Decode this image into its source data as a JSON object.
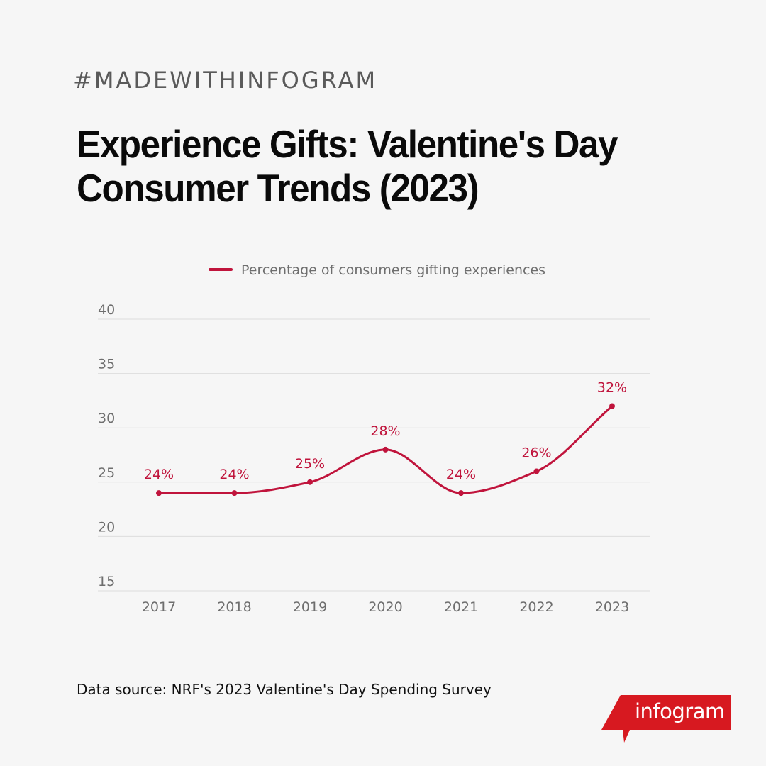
{
  "header": {
    "hashtag": "#MADEWITHINFOGRAM",
    "title_line1": "Experience Gifts: Valentine's Day",
    "title_line2": "Consumer Trends (2023)"
  },
  "footer": {
    "source": "Data source: NRF's 2023 Valentine's Day Spending Survey",
    "brand": "infogram"
  },
  "colors": {
    "series": "#c0143c",
    "brand": "#d71920",
    "grid": "#dcdcdc",
    "axis_text": "#6e6e6e"
  },
  "chart_data": {
    "type": "line",
    "title": "",
    "xlabel": "",
    "ylabel": "",
    "x": [
      "2017",
      "2018",
      "2019",
      "2020",
      "2021",
      "2022",
      "2023"
    ],
    "series": [
      {
        "name": "Percentage of consumers gifting experiences",
        "values": [
          24,
          24,
          25,
          28,
          24,
          26,
          32
        ],
        "labels": [
          "24%",
          "24%",
          "25%",
          "28%",
          "24%",
          "26%",
          "32%"
        ]
      }
    ],
    "ylim": [
      15,
      40
    ],
    "yticks": [
      40,
      35,
      30,
      25,
      20,
      15
    ],
    "grid": true,
    "legend": "top-center",
    "smooth": true
  }
}
